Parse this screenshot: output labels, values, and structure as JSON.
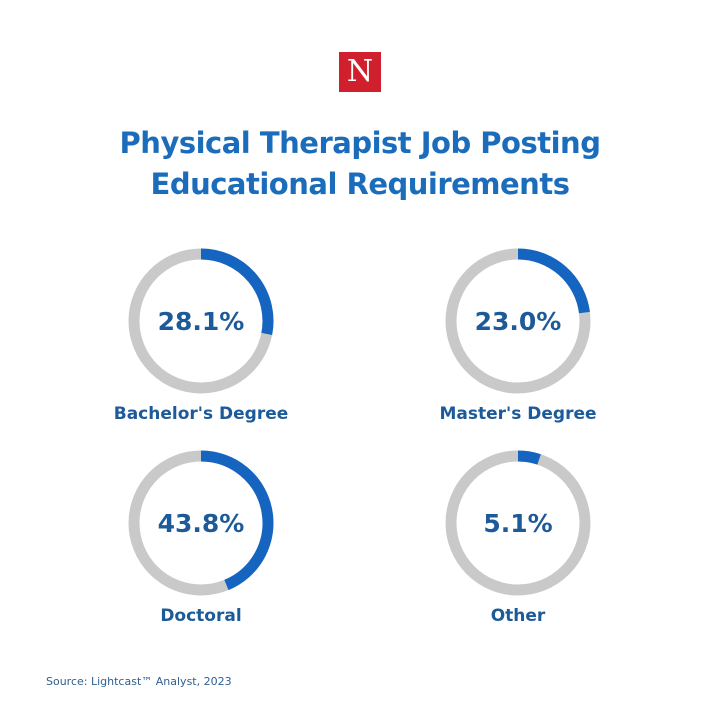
{
  "logo": {
    "letter": "N",
    "color": "#d0202e"
  },
  "title": {
    "line1": "Physical Therapist Job Posting",
    "line2": "Educational Requirements"
  },
  "chart_data": {
    "type": "donut",
    "title": "Physical Therapist Job Posting Educational Requirements",
    "categories": [
      "Bachelor's Degree",
      "Master's Degree",
      "Doctoral",
      "Other"
    ],
    "values": [
      28.1,
      23.0,
      43.8,
      5.1
    ],
    "labels": [
      "28.1%",
      "23.0%",
      "43.8%",
      "5.1%"
    ],
    "unit": "%",
    "colors": {
      "filled": "#1565c0",
      "track": "#c9c9c9",
      "text": "#1d5a9a"
    }
  },
  "source": "Source: Lightcast™ Analyst, 2023"
}
